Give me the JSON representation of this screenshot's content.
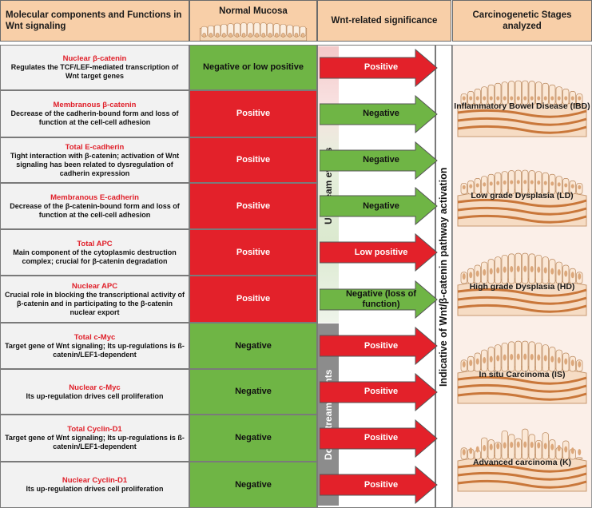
{
  "headers": {
    "components": "Molecular components and Functions in Wnt signaling",
    "normal_mucosa": "Normal Mucosa",
    "significance": "Wnt-related significance",
    "stages": "Carcinogenetic Stages analyzed"
  },
  "rows": [
    {
      "title": "Nuclear β-catenin",
      "desc": "Regulates the TCF/LEF-mediated transcription of Wnt target genes",
      "normal": "Negative or low positive",
      "normal_color": "green",
      "significance": "Positive",
      "sig_color": "red"
    },
    {
      "title": "Membranous β-catenin",
      "desc": "Decrease of the cadherin-bound form and loss of function at the cell-cell adhesion",
      "normal": "Positive",
      "normal_color": "red",
      "significance": "Negative",
      "sig_color": "green"
    },
    {
      "title": "Total E-cadherin",
      "desc": "Tight interaction with β-catenin; activation of Wnt signaling has been related to dysregulation of cadherin expression",
      "normal": "Positive",
      "normal_color": "red",
      "significance": "Negative",
      "sig_color": "green"
    },
    {
      "title": "Membranous E-cadherin",
      "desc": "Decrease of the β-catenin-bound form and loss of function at the cell-cell adhesion",
      "normal": "Positive",
      "normal_color": "red",
      "significance": "Negative",
      "sig_color": "green"
    },
    {
      "title": "Total APC",
      "desc": "Main component of the cytoplasmic destruction complex; crucial for β-catenin degradation",
      "normal": "Positive",
      "normal_color": "red",
      "significance": "Low positive",
      "sig_color": "red"
    },
    {
      "title": "Nuclear APC",
      "desc": "Crucial role in blocking the transcriptional activity of β-catenin and in participating to the β-catenin nuclear export",
      "normal": "Positive",
      "normal_color": "red",
      "significance": "Negative (loss of function)",
      "sig_color": "green"
    },
    {
      "title": "Total c-Myc",
      "desc": "Target gene of Wnt signaling; Its up-regulations is ß-catenin/LEF1-dependent",
      "normal": "Negative",
      "normal_color": "green",
      "significance": "Positive",
      "sig_color": "red"
    },
    {
      "title": "Nuclear c-Myc",
      "desc": "Its up-regulation drives cell proliferation",
      "normal": "Negative",
      "normal_color": "green",
      "significance": "Positive",
      "sig_color": "red"
    },
    {
      "title": "Total Cyclin-D1",
      "desc": "Target gene of Wnt signaling; Its up-regulations is ß-catenin/LEF1-dependent",
      "normal": "Negative",
      "normal_color": "green",
      "significance": "Positive",
      "sig_color": "red"
    },
    {
      "title": "Nuclear Cyclin-D1",
      "desc": "Its up-regulation drives cell proliferation",
      "normal": "Negative",
      "normal_color": "green",
      "significance": "Positive",
      "sig_color": "red"
    }
  ],
  "upstream_label": "Upstream events",
  "downstream_label": "Downstream events",
  "pathway_label": "Indicative of  Wnt/β-catenin pathway activation",
  "stages": [
    {
      "label": "Inflammatory Bowel Disease (IBD)"
    },
    {
      "label": "Low grade Dysplasia (LD)"
    },
    {
      "label": "High grade Dysplasia (HD)"
    },
    {
      "label": "In situ Carcinoma (IS)"
    },
    {
      "label": "Advanced carcinoma (K)"
    }
  ],
  "colors": {
    "red": "#e3212a",
    "green": "#6fb545",
    "header": "#f8cfa8"
  }
}
